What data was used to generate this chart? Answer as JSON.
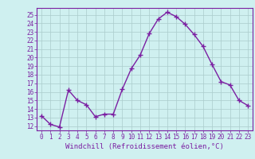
{
  "x": [
    0,
    1,
    2,
    3,
    4,
    5,
    6,
    7,
    8,
    9,
    10,
    11,
    12,
    13,
    14,
    15,
    16,
    17,
    18,
    19,
    20,
    21,
    22,
    23
  ],
  "y": [
    13.2,
    12.2,
    11.9,
    16.2,
    15.0,
    14.5,
    13.1,
    13.4,
    13.4,
    16.3,
    18.7,
    20.3,
    22.8,
    24.5,
    25.3,
    24.8,
    23.9,
    22.7,
    21.3,
    19.2,
    17.2,
    16.8,
    15.0,
    14.4
  ],
  "line_color": "#7b1fa2",
  "marker": "+",
  "markersize": 4,
  "linewidth": 1.0,
  "xlabel": "Windchill (Refroidissement éolien,°C)",
  "xlabel_fontsize": 6.5,
  "ylabel_ticks": [
    12,
    13,
    14,
    15,
    16,
    17,
    18,
    19,
    20,
    21,
    22,
    23,
    24,
    25
  ],
  "xlim": [
    -0.5,
    23.5
  ],
  "ylim": [
    11.5,
    25.8
  ],
  "bg_color": "#cff0f0",
  "grid_color": "#aacccc",
  "tick_fontsize": 5.5
}
